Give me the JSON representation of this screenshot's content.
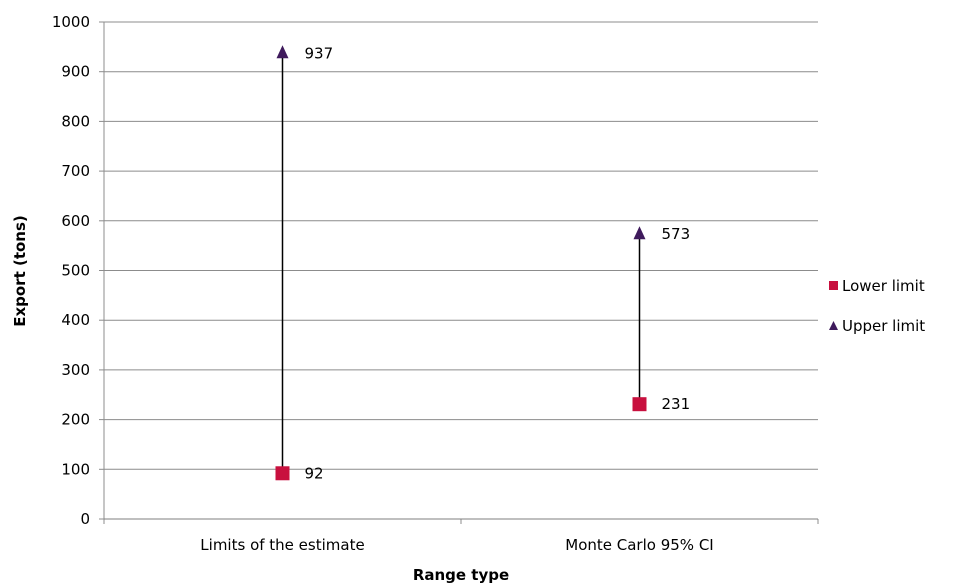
{
  "chart_data": {
    "type": "scatter",
    "categories": [
      "Limits of the estimate",
      "Monte Carlo 95% CI"
    ],
    "series": [
      {
        "name": "Lower limit",
        "marker": "square",
        "color": "#c8103e",
        "values": [
          92,
          231
        ],
        "labels": [
          "92",
          "231"
        ]
      },
      {
        "name": "Upper limit",
        "marker": "triangle",
        "color": "#3f1a5c",
        "values": [
          937,
          573
        ],
        "labels": [
          "937",
          "573"
        ]
      }
    ],
    "range_lines": true,
    "xlabel": "Range type",
    "ylabel": "Export (tons)",
    "ylim": [
      0,
      1000
    ],
    "yticks": [
      "0",
      "100",
      "200",
      "300",
      "400",
      "500",
      "600",
      "700",
      "800",
      "900",
      "1000"
    ],
    "grid": true,
    "legend_position": "right"
  }
}
